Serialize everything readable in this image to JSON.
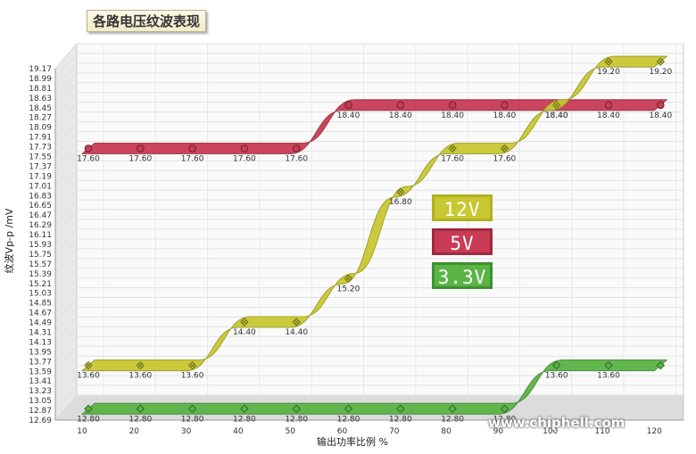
{
  "chart_data": {
    "type": "line",
    "title": "各路电压纹波表现",
    "xlabel": "输出功率比例 %",
    "ylabel": "纹波Vp-p /mV",
    "x": [
      10,
      20,
      30,
      40,
      50,
      60,
      70,
      80,
      90,
      100,
      110,
      120
    ],
    "yticks": [
      "12.69",
      "12.87",
      "13.05",
      "13.23",
      "13.41",
      "13.59",
      "13.77",
      "13.95",
      "14.13",
      "14.31",
      "14.49",
      "14.67",
      "14.85",
      "15.03",
      "15.21",
      "15.39",
      "15.57",
      "15.75",
      "15.93",
      "16.11",
      "16.29",
      "16.47",
      "16.65",
      "16.83",
      "17.01",
      "17.19",
      "17.37",
      "17.55",
      "17.73",
      "17.91",
      "18.09",
      "18.27",
      "18.45",
      "18.63",
      "18.81",
      "18.99",
      "19.17"
    ],
    "ylim": [
      12.69,
      19.17
    ],
    "grid": true,
    "series": [
      {
        "name": "12V",
        "color": "#c8c832",
        "values": [
          13.6,
          13.6,
          13.6,
          14.4,
          14.4,
          15.2,
          16.8,
          17.6,
          17.6,
          18.4,
          19.2,
          19.2
        ],
        "labels": [
          "13.60",
          "13.60",
          "13.60",
          "14.40",
          "14.40",
          "15.20",
          "16.80",
          "17.60",
          "17.60",
          "18.40",
          "19.20",
          "19.20"
        ]
      },
      {
        "name": "5V",
        "color": "#c83c55",
        "values": [
          17.6,
          17.6,
          17.6,
          17.6,
          17.6,
          18.4,
          18.4,
          18.4,
          18.4,
          18.4,
          18.4,
          18.4
        ],
        "labels": [
          "17.60",
          "17.60",
          "17.60",
          "17.60",
          "17.60",
          "18.40",
          "18.40",
          "18.40",
          "18.40",
          "18.40",
          "18.40",
          "18.40"
        ]
      },
      {
        "name": "3.3V",
        "color": "#5ab446",
        "values": [
          12.8,
          12.8,
          12.8,
          12.8,
          12.8,
          12.8,
          12.8,
          12.8,
          12.8,
          13.6,
          13.6,
          13.6
        ],
        "labels": [
          "12.80",
          "12.80",
          "12.80",
          "12.80",
          "12.80",
          "12.80",
          "12.80",
          "12.80",
          "12.80",
          "13.60",
          "13.60",
          ""
        ]
      }
    ],
    "legend": {
      "placement": "center-right",
      "items": [
        "12V",
        "5V",
        "3.3V"
      ]
    }
  },
  "watermark": "www.chiphell.com"
}
